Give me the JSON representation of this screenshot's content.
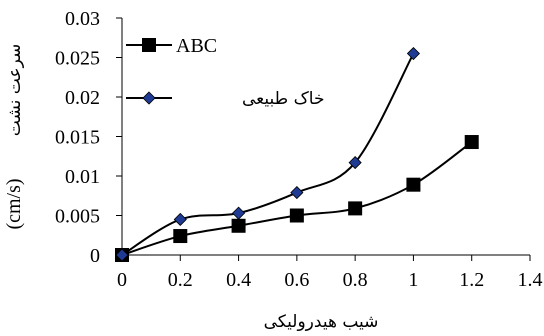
{
  "chart_data": {
    "type": "line",
    "title": "",
    "xlabel": "شیب هیدرولیکی",
    "ylabel_fa": "سرعت نشت",
    "ylabel_unit": "(cm/s)",
    "xlim": [
      0,
      1.4
    ],
    "ylim": [
      0,
      0.03
    ],
    "xticks": [
      0,
      0.2,
      0.4,
      0.6,
      0.8,
      1,
      1.2,
      1.4
    ],
    "yticks": [
      0,
      0.005,
      0.01,
      0.015,
      0.02,
      0.025,
      0.03
    ],
    "xtick_labels": [
      "0",
      "0.2",
      "0.4",
      "0.6",
      "0.8",
      "1",
      "1.2",
      "1.4"
    ],
    "ytick_labels": [
      "0",
      "0.005",
      "0.01",
      "0.015",
      "0.02",
      "0.025",
      "0.03"
    ],
    "grid": false,
    "legend_position": "top-left",
    "series": [
      {
        "name": "ABC",
        "marker": "square",
        "color": "#000000",
        "marker_fill": "#000000",
        "x": [
          0,
          0.2,
          0.4,
          0.6,
          0.8,
          1.0,
          1.2
        ],
        "y": [
          0,
          0.0024,
          0.0037,
          0.005,
          0.0059,
          0.0089,
          0.0143
        ]
      },
      {
        "name": "خاک طبیعی",
        "marker": "diamond",
        "color": "#000000",
        "marker_fill": "#1f3a93",
        "x": [
          0,
          0.2,
          0.4,
          0.6,
          0.8,
          1.0
        ],
        "y": [
          0,
          0.0045,
          0.0053,
          0.0079,
          0.0117,
          0.0255
        ]
      }
    ]
  }
}
